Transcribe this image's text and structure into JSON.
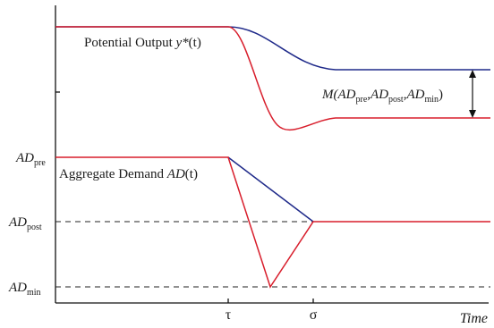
{
  "colors": {
    "red": "#d81e2c",
    "blue": "#1f2a8a",
    "axis": "#111111"
  },
  "labels": {
    "potential_output": {
      "text": "Potential Output ",
      "var": "y*",
      "arg": "(t)"
    },
    "aggregate_demand": {
      "text": "Aggregate Demand ",
      "var": "AD",
      "arg": "(t)"
    },
    "ad_pre": {
      "main": "AD",
      "sub": "pre"
    },
    "ad_post": {
      "main": "AD",
      "sub": "post"
    },
    "ad_min": {
      "main": "AD",
      "sub": "min"
    },
    "gap": {
      "prefix": "M(",
      "v1": "AD",
      "s1": "pre",
      "sep1": ",",
      "v2": "AD",
      "s2": "post",
      "sep2": ",",
      "v3": "AD",
      "s3": "min",
      "suffix": ")"
    },
    "tau": "τ",
    "sigma": "σ",
    "time": "Time"
  }
}
